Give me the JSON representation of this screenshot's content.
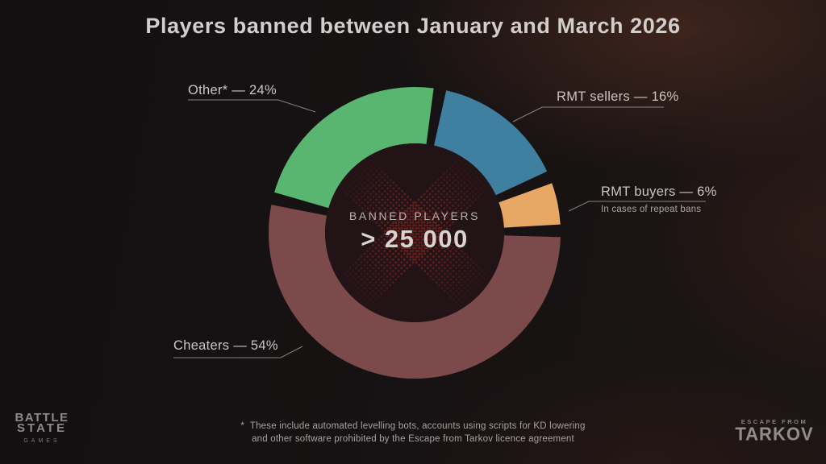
{
  "page": {
    "title": "Players banned between January and March 2026"
  },
  "chart_data": {
    "type": "pie",
    "variant": "donut",
    "title": "Players banned between January and March 2026",
    "center_label": "BANNED PLAYERS",
    "center_value": "> 25 000",
    "rotation_deg": 10,
    "gap_deg": 5,
    "legend_position": "callouts",
    "slices": [
      {
        "name": "RMT sellers",
        "pct": 16,
        "color": "#3f7fa0",
        "display": "RMT sellers — 16%"
      },
      {
        "name": "RMT buyers",
        "pct": 6,
        "color": "#e8a765",
        "display": "RMT buyers — 6%",
        "note": "In cases of repeat bans"
      },
      {
        "name": "Cheaters",
        "pct": 54,
        "color": "#7c4a4a",
        "display": "Cheaters — 54%"
      },
      {
        "name": "Other",
        "pct": 24,
        "color": "#58b671",
        "display": "Other* — 24%"
      }
    ]
  },
  "footnote": {
    "marker": "*",
    "line1": "These include automated levelling bots, accounts using scripts for KD lowering",
    "line2": "and other software prohibited by the Escape from Tarkov licence agreement"
  },
  "logos": {
    "battlestate": {
      "line1": "BATTLE",
      "line2": "STATE",
      "line3": "GAMES"
    },
    "tarkov": {
      "top": "ESCAPE FROM",
      "main": "TARKOV"
    }
  },
  "colors": {
    "background_base": "#151112",
    "background_glow": "#3a2620",
    "center_circle": "#211316",
    "center_x_dots": "#7c2420",
    "title_text": "#d3cdcb",
    "label_text": "#cbc4c2",
    "connector_line": "#9c9492",
    "footnote_text": "#a9a29f",
    "logo_text": "#8e8a88"
  }
}
